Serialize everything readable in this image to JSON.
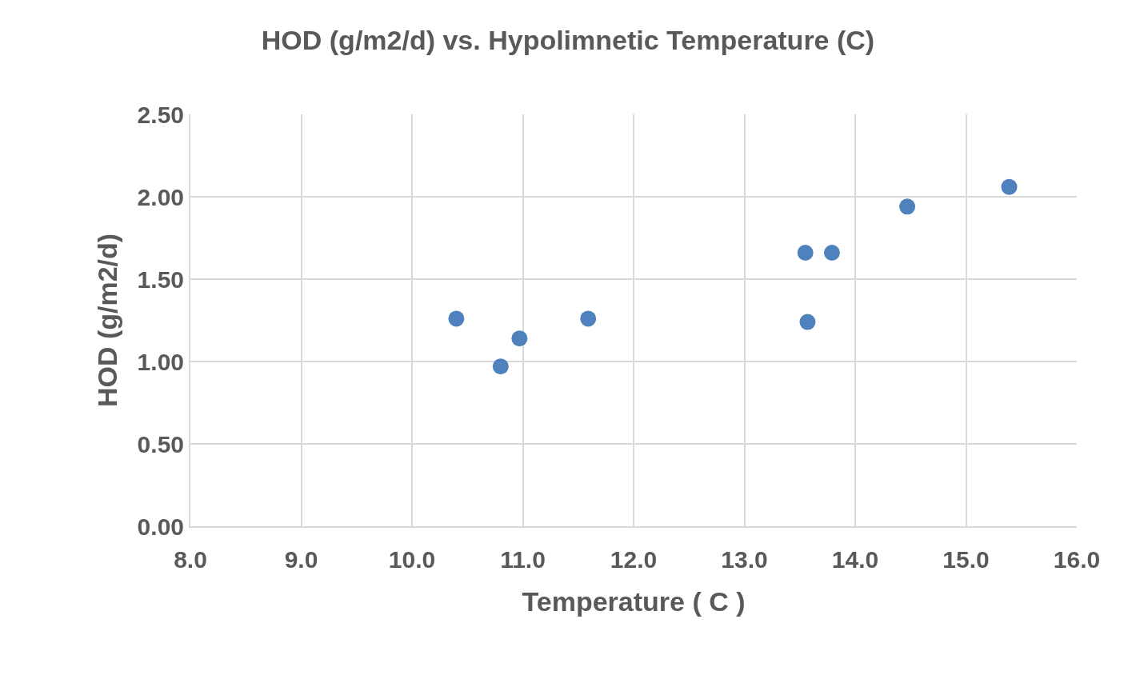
{
  "chart_data": {
    "type": "scatter",
    "title": "HOD (g/m2/d) vs. Hypolimnetic Temperature (C)",
    "xlabel": "Temperature ( C )",
    "ylabel": "HOD (g/m2/d)",
    "x": [
      10.4,
      10.8,
      10.97,
      11.59,
      13.55,
      13.57,
      13.79,
      14.47,
      15.39
    ],
    "series": [
      {
        "color": "#4f81bd",
        "values": [
          1.26,
          0.97,
          1.14,
          1.26,
          1.66,
          1.24,
          1.66,
          1.94,
          2.06
        ]
      }
    ],
    "xlim": [
      8,
      16
    ],
    "xticks": [
      {
        "value": 8,
        "label": "8.0"
      },
      {
        "value": 9,
        "label": "9.0"
      },
      {
        "value": 10,
        "label": "10.0"
      },
      {
        "value": 11,
        "label": "11.0"
      },
      {
        "value": 12,
        "label": "12.0"
      },
      {
        "value": 13,
        "label": "13.0"
      },
      {
        "value": 14,
        "label": "14.0"
      },
      {
        "value": 15,
        "label": "15.0"
      },
      {
        "value": 16,
        "label": "16.0"
      }
    ],
    "ylim": [
      0,
      2.5
    ],
    "yticks": [
      {
        "value": 0,
        "label": "0.00"
      },
      {
        "value": 0.5,
        "label": "0.50"
      },
      {
        "value": 1,
        "label": "1.00"
      },
      {
        "value": 1.5,
        "label": "1.50"
      },
      {
        "value": 2,
        "label": "2.00"
      },
      {
        "value": 2.5,
        "label": "2.50"
      }
    ],
    "grid": true,
    "marker": "circle"
  }
}
